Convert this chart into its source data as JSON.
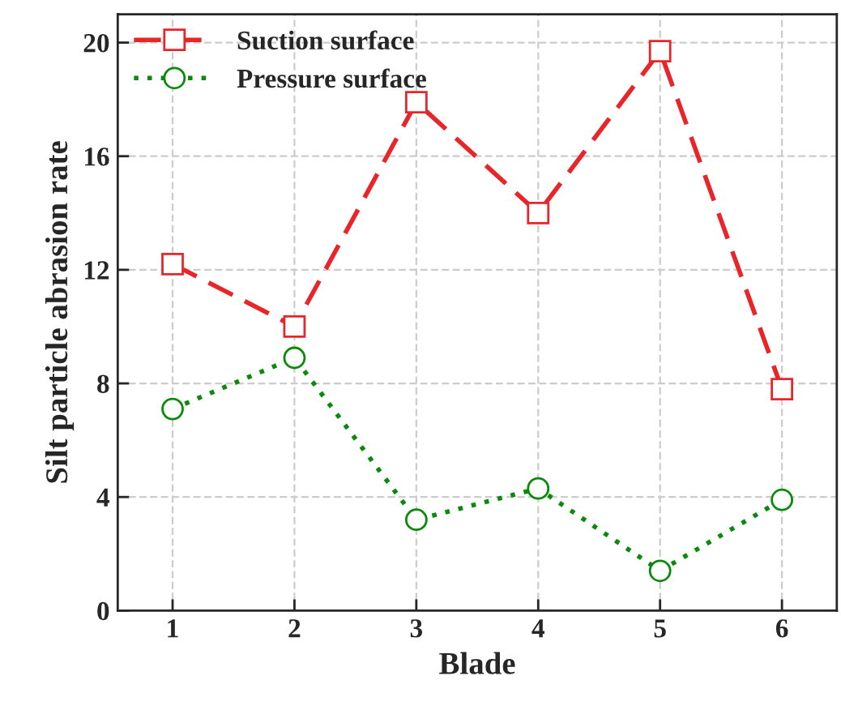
{
  "chart_data": {
    "type": "line",
    "xlabel": "Blade",
    "ylabel": "Silt particle abrasion rate",
    "categories": [
      "1",
      "2",
      "3",
      "4",
      "5",
      "6"
    ],
    "series": [
      {
        "name": "Suction surface",
        "color": "#e8262a",
        "marker": "square",
        "line_style": "dashed",
        "values": [
          12.2,
          10.0,
          17.9,
          14.0,
          19.7,
          7.8
        ]
      },
      {
        "name": "Pressure surface",
        "color": "#0a8a0a",
        "marker": "circle",
        "line_style": "dotted",
        "values": [
          7.1,
          8.9,
          3.2,
          4.3,
          1.4,
          3.9
        ]
      }
    ],
    "ylim": [
      0,
      21
    ],
    "yticks": [
      0,
      4,
      8,
      12,
      16,
      20
    ],
    "grid": true,
    "legend": "top left"
  }
}
